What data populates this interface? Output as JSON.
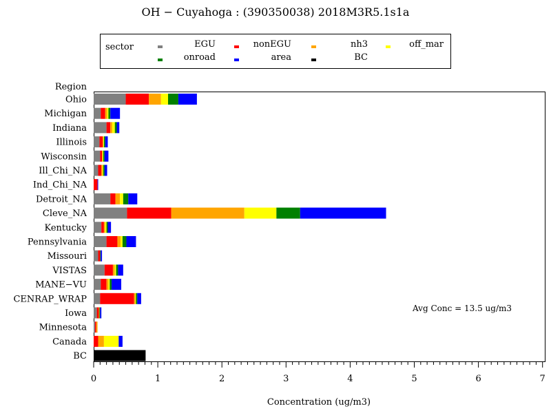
{
  "chart_data": {
    "type": "bar",
    "orientation": "horizontal",
    "stacked": true,
    "title": "OH  −  Cuyahoga  :  (390350038)  2018M3R5.1s1a",
    "xlabel": "Concentration  (ug/m3)",
    "ylabel": "Region",
    "xlim": [
      0,
      7
    ],
    "x_ticks": [
      "0",
      "1",
      "2",
      "3",
      "4",
      "5",
      "6",
      "7"
    ],
    "grid": false,
    "legend_title": "sector",
    "legend_position": "top",
    "annotation": "Avg Conc  =   13.5 ug/m3",
    "categories": [
      "Ohio",
      "Michigan",
      "Indiana",
      "Illinois",
      "Wisconsin",
      "Ill_Chi_NA",
      "Ind_Chi_NA",
      "Detroit_NA",
      "Cleve_NA",
      "Kentucky",
      "Pennsylvania",
      "Missouri",
      "VISTAS",
      "MANE−VU",
      "CENRAP_WRAP",
      "Iowa",
      "Minnesota",
      "Canada",
      "BC"
    ],
    "series": [
      {
        "name": "EGU",
        "color": "#808080",
        "values": [
          0.5,
          0.11,
          0.2,
          0.09,
          0.1,
          0.07,
          0.0,
          0.26,
          0.52,
          0.12,
          0.2,
          0.07,
          0.17,
          0.11,
          0.1,
          0.05,
          0.02,
          0.0,
          0.0
        ]
      },
      {
        "name": "nonEGU",
        "color": "#ff0000",
        "values": [
          0.36,
          0.07,
          0.06,
          0.05,
          0.03,
          0.05,
          0.06,
          0.08,
          0.69,
          0.04,
          0.17,
          0.03,
          0.13,
          0.09,
          0.53,
          0.03,
          0.02,
          0.07,
          0.0
        ]
      },
      {
        "name": "nh3",
        "color": "#ffa500",
        "values": [
          0.19,
          0.03,
          0.03,
          0.01,
          0.01,
          0.02,
          0.0,
          0.07,
          1.14,
          0.02,
          0.05,
          0.0,
          0.03,
          0.03,
          0.02,
          0.01,
          0.02,
          0.09,
          0.0
        ]
      },
      {
        "name": "off_mar",
        "color": "#ffff00",
        "values": [
          0.11,
          0.02,
          0.04,
          0.01,
          0.01,
          0.01,
          0.0,
          0.05,
          0.5,
          0.02,
          0.03,
          0.0,
          0.02,
          0.02,
          0.01,
          0.0,
          0.0,
          0.23,
          0.0
        ]
      },
      {
        "name": "onroad",
        "color": "#008000",
        "values": [
          0.16,
          0.03,
          0.03,
          0.02,
          0.02,
          0.02,
          0.0,
          0.08,
          0.37,
          0.02,
          0.06,
          0.01,
          0.03,
          0.03,
          0.02,
          0.01,
          0.0,
          0.0,
          0.0
        ]
      },
      {
        "name": "area",
        "color": "#0000ff",
        "values": [
          0.29,
          0.15,
          0.04,
          0.04,
          0.06,
          0.04,
          0.01,
          0.14,
          1.34,
          0.05,
          0.15,
          0.02,
          0.08,
          0.15,
          0.06,
          0.02,
          0.0,
          0.06,
          0.0
        ]
      },
      {
        "name": "BC",
        "color": "#000000",
        "values": [
          0.0,
          0.0,
          0.0,
          0.0,
          0.0,
          0.0,
          0.0,
          0.0,
          0.0,
          0.0,
          0.0,
          0.0,
          0.0,
          0.0,
          0.0,
          0.0,
          0.0,
          0.0,
          0.81
        ]
      }
    ]
  }
}
